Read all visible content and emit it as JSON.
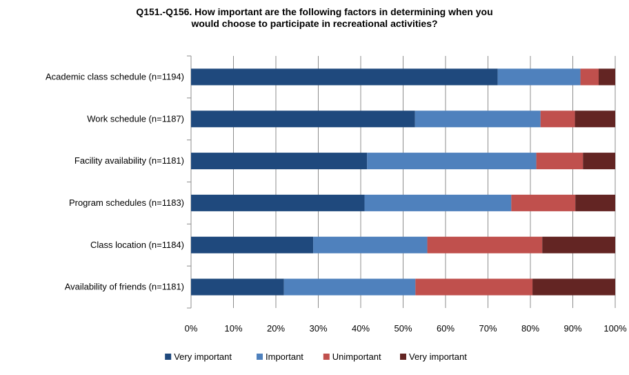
{
  "chart_data": {
    "type": "bar",
    "orientation": "horizontal",
    "stacked": true,
    "title_line1": "Q151.-Q156. How important are the following factors in determining when you",
    "title_line2": "would choose to participate in recreational activities?",
    "categories": [
      "Academic class schedule (n=1194)",
      "Work schedule (n=1187)",
      "Facility availability (n=1181)",
      "Program schedules (n=1183)",
      "Class location (n=1184)",
      "Availability of friends (n=1181)"
    ],
    "series": [
      {
        "name": "Very important",
        "color": "#1f497d",
        "values": [
          72.3,
          52.8,
          41.5,
          40.9,
          28.8,
          21.9
        ]
      },
      {
        "name": "Important",
        "color": "#4f81bd",
        "values": [
          19.5,
          29.6,
          39.9,
          34.6,
          26.9,
          31.0
        ]
      },
      {
        "name": "Unimportant",
        "color": "#c0504d",
        "values": [
          4.3,
          8.1,
          11.0,
          15.1,
          27.1,
          27.6
        ]
      },
      {
        "name": "Very important",
        "color": "#632523",
        "values": [
          3.9,
          9.5,
          7.6,
          9.4,
          17.2,
          19.5
        ]
      }
    ],
    "x_ticks": [
      "0%",
      "10%",
      "20%",
      "30%",
      "40%",
      "50%",
      "60%",
      "70%",
      "80%",
      "90%",
      "100%"
    ],
    "xlim": [
      0,
      100
    ],
    "grid": true,
    "legend_position": "bottom"
  }
}
